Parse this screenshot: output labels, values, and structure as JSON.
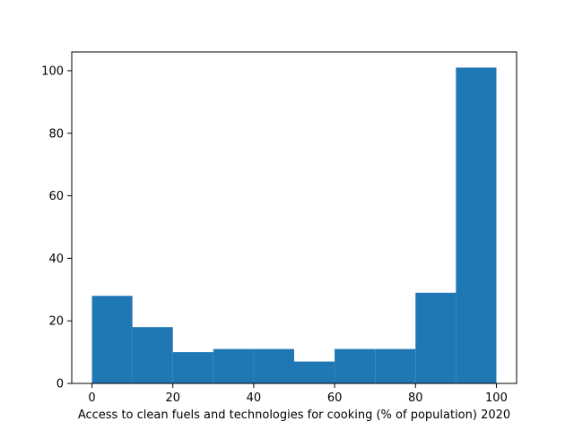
{
  "chart_data": {
    "type": "bar",
    "subtype": "histogram",
    "title": "",
    "xlabel": "Access to clean fuels and technologies for cooking (% of population) 2020",
    "ylabel": "",
    "bins": [
      {
        "from": 0,
        "to": 10,
        "count": 28
      },
      {
        "from": 10,
        "to": 20,
        "count": 18
      },
      {
        "from": 20,
        "to": 30,
        "count": 10
      },
      {
        "from": 30,
        "to": 40,
        "count": 11
      },
      {
        "from": 40,
        "to": 50,
        "count": 11
      },
      {
        "from": 50,
        "to": 60,
        "count": 7
      },
      {
        "from": 60,
        "to": 70,
        "count": 11
      },
      {
        "from": 70,
        "to": 80,
        "count": 11
      },
      {
        "from": 80,
        "to": 90,
        "count": 29
      },
      {
        "from": 90,
        "to": 100,
        "count": 101
      }
    ],
    "xlim": [
      -5,
      105
    ],
    "ylim": [
      0,
      106
    ],
    "xticks": [
      "0",
      "20",
      "40",
      "60",
      "80",
      "100"
    ],
    "yticks": [
      "0",
      "20",
      "40",
      "60",
      "80",
      "100"
    ],
    "bar_color": "#1f77b4",
    "grid": false,
    "legend": "none"
  }
}
